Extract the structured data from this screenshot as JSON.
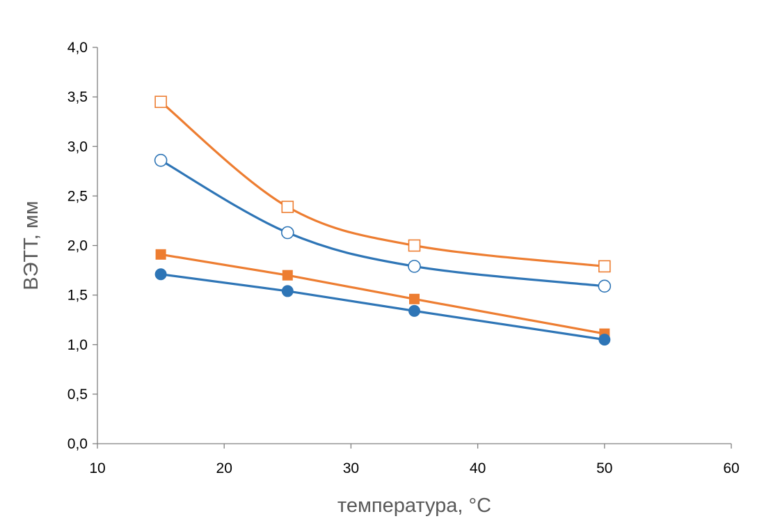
{
  "chart_data": {
    "type": "scatter",
    "title": "",
    "xlabel": "температура, °C",
    "ylabel": "ВЭТТ, мм",
    "xlim": [
      10,
      60
    ],
    "ylim": [
      0,
      4
    ],
    "x_ticks": [
      "10",
      "20",
      "30",
      "40",
      "50",
      "60"
    ],
    "y_ticks": [
      "0,0",
      "0,5",
      "1,0",
      "1,5",
      "2,0",
      "2,5",
      "3,0",
      "3,5",
      "4,0"
    ],
    "grid": false,
    "legend": "none",
    "series": [
      {
        "marker": "square-open",
        "color": "#ED7D31",
        "smooth": true,
        "points": [
          [
            15,
            3.45
          ],
          [
            25,
            2.39
          ],
          [
            35,
            2.0
          ],
          [
            50,
            1.79
          ]
        ]
      },
      {
        "marker": "circle-open",
        "color": "#2E75B6",
        "smooth": true,
        "points": [
          [
            15,
            2.86
          ],
          [
            25,
            2.13
          ],
          [
            35,
            1.79
          ],
          [
            50,
            1.59
          ]
        ]
      },
      {
        "marker": "square-filled",
        "color": "#ED7D31",
        "smooth": false,
        "points": [
          [
            15,
            1.91
          ],
          [
            25,
            1.7
          ],
          [
            35,
            1.46
          ],
          [
            50,
            1.11
          ]
        ]
      },
      {
        "marker": "circle-filled",
        "color": "#2E75B6",
        "smooth": false,
        "points": [
          [
            15,
            1.71
          ],
          [
            25,
            1.54
          ],
          [
            35,
            1.34
          ],
          [
            50,
            1.05
          ]
        ]
      }
    ]
  }
}
